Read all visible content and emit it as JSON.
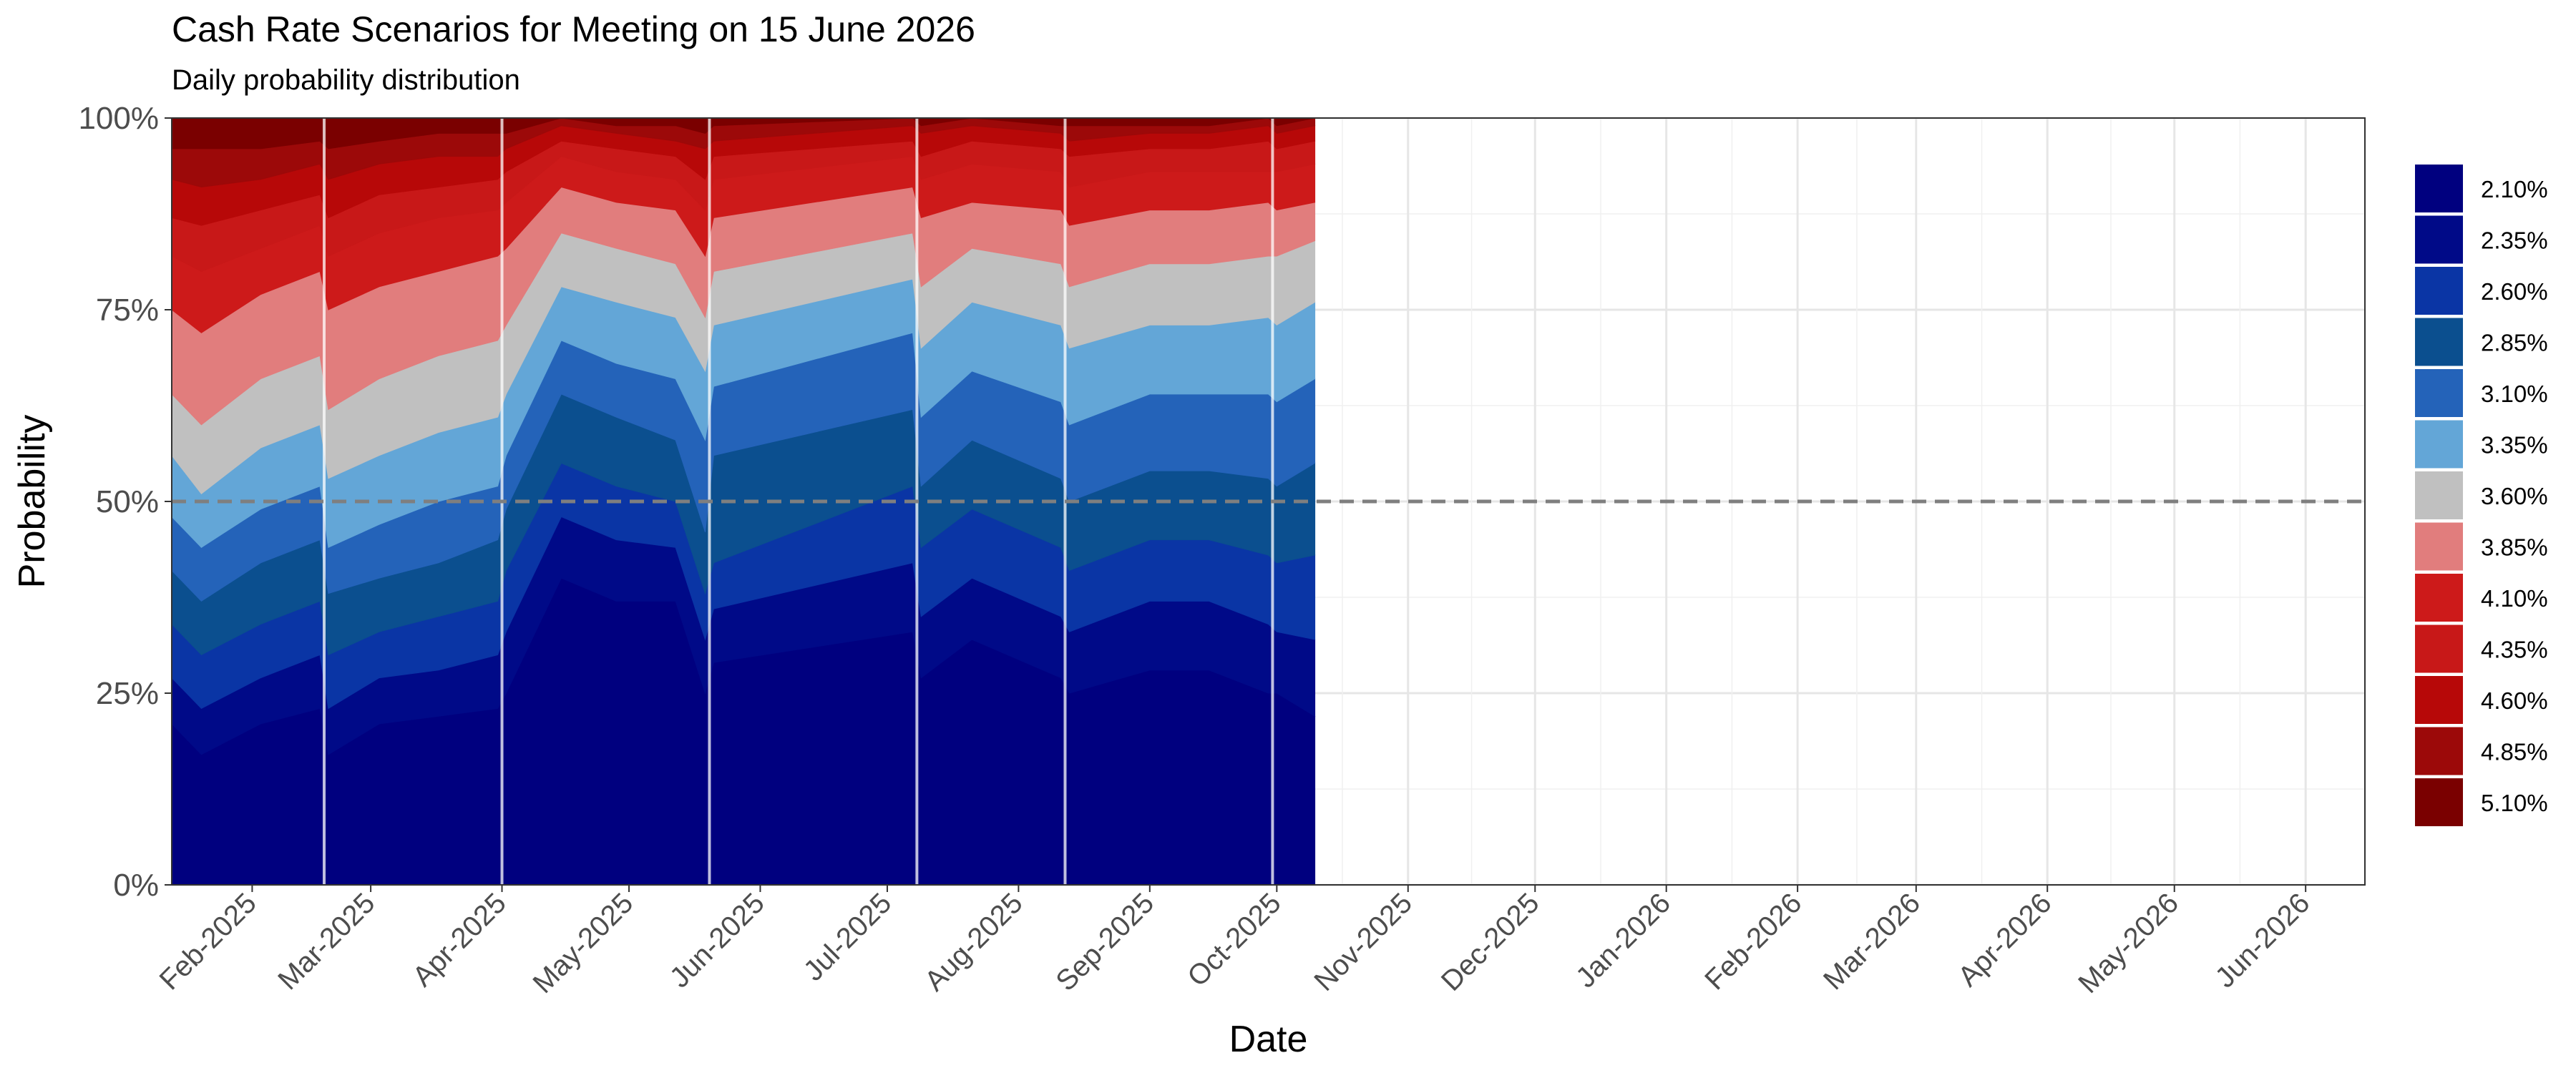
{
  "chart_data": {
    "type": "area",
    "title": "Cash Rate Scenarios for Meeting on 15 June 2026",
    "subtitle": "Daily probability distribution",
    "xlabel": "Date",
    "ylabel": "Probability",
    "y_ticks": [
      "0%",
      "25%",
      "50%",
      "75%",
      "100%"
    ],
    "ylim": [
      0,
      1
    ],
    "x_range": [
      "2025-01-13",
      "2026-06-15"
    ],
    "x_ticks": [
      "Feb-2025",
      "Mar-2025",
      "Apr-2025",
      "May-2025",
      "Jun-2025",
      "Jul-2025",
      "Aug-2025",
      "Sep-2025",
      "Oct-2025",
      "Nov-2025",
      "Dec-2025",
      "Jan-2026",
      "Feb-2026",
      "Mar-2026",
      "Apr-2026",
      "May-2026",
      "Jun-2026"
    ],
    "x_tick_dates": [
      "2025-02-01",
      "2025-03-01",
      "2025-04-01",
      "2025-05-01",
      "2025-06-01",
      "2025-07-01",
      "2025-08-01",
      "2025-09-01",
      "2025-10-01",
      "2025-11-01",
      "2025-12-01",
      "2026-01-01",
      "2026-02-01",
      "2026-03-01",
      "2026-04-01",
      "2026-05-01",
      "2026-06-01"
    ],
    "reference_line": 0.5,
    "meeting_dates": [
      "2025-02-18",
      "2025-04-01",
      "2025-05-20",
      "2025-07-08",
      "2025-08-12",
      "2025-09-30"
    ],
    "legend": [
      {
        "label": "2.10%",
        "color": "#00007f"
      },
      {
        "label": "2.35%",
        "color": "#000a88"
      },
      {
        "label": "2.60%",
        "color": "#0a35a5"
      },
      {
        "label": "2.85%",
        "color": "#0b4f8f"
      },
      {
        "label": "3.10%",
        "color": "#2463b9"
      },
      {
        "label": "3.35%",
        "color": "#63a6d7"
      },
      {
        "label": "3.60%",
        "color": "#c0c0c0"
      },
      {
        "label": "3.85%",
        "color": "#e17d7d"
      },
      {
        "label": "4.10%",
        "color": "#cd1a1a"
      },
      {
        "label": "4.35%",
        "color": "#c81818"
      },
      {
        "label": "4.60%",
        "color": "#b70808"
      },
      {
        "label": "4.85%",
        "color": "#9c0909"
      },
      {
        "label": "5.10%",
        "color": "#7a0000"
      }
    ],
    "x": [
      "2025-01-13",
      "2025-01-20",
      "2025-02-03",
      "2025-02-17",
      "2025-02-19",
      "2025-03-03",
      "2025-03-17",
      "2025-03-31",
      "2025-04-02",
      "2025-04-15",
      "2025-04-28",
      "2025-05-12",
      "2025-05-19",
      "2025-05-21",
      "2025-07-07",
      "2025-07-09",
      "2025-07-21",
      "2025-08-11",
      "2025-08-13",
      "2025-09-01",
      "2025-09-15",
      "2025-09-29",
      "2025-10-01",
      "2025-10-10"
    ],
    "series_boundaries": [
      {
        "name": "2.10% top",
        "values": [
          0.21,
          0.17,
          0.21,
          0.23,
          0.17,
          0.21,
          0.22,
          0.23,
          0.25,
          0.4,
          0.37,
          0.37,
          0.25,
          0.29,
          0.33,
          0.27,
          0.32,
          0.27,
          0.25,
          0.28,
          0.28,
          0.25,
          0.25,
          0.22
        ]
      },
      {
        "name": "2.35% top",
        "values": [
          0.27,
          0.23,
          0.27,
          0.3,
          0.23,
          0.27,
          0.28,
          0.3,
          0.33,
          0.48,
          0.45,
          0.44,
          0.32,
          0.36,
          0.42,
          0.35,
          0.4,
          0.35,
          0.33,
          0.37,
          0.37,
          0.34,
          0.33,
          0.32
        ]
      },
      {
        "name": "2.60% top",
        "values": [
          0.34,
          0.3,
          0.34,
          0.37,
          0.3,
          0.33,
          0.35,
          0.37,
          0.41,
          0.55,
          0.52,
          0.5,
          0.38,
          0.42,
          0.52,
          0.44,
          0.49,
          0.44,
          0.41,
          0.45,
          0.45,
          0.43,
          0.42,
          0.43
        ]
      },
      {
        "name": "2.85% top",
        "values": [
          0.41,
          0.37,
          0.42,
          0.45,
          0.38,
          0.4,
          0.42,
          0.45,
          0.49,
          0.64,
          0.61,
          0.58,
          0.46,
          0.56,
          0.62,
          0.52,
          0.58,
          0.53,
          0.5,
          0.54,
          0.54,
          0.53,
          0.52,
          0.55
        ]
      },
      {
        "name": "3.10% top",
        "values": [
          0.48,
          0.44,
          0.49,
          0.52,
          0.44,
          0.47,
          0.5,
          0.52,
          0.56,
          0.71,
          0.68,
          0.66,
          0.58,
          0.65,
          0.72,
          0.61,
          0.67,
          0.63,
          0.6,
          0.64,
          0.64,
          0.64,
          0.63,
          0.66
        ]
      },
      {
        "name": "3.35% top",
        "values": [
          0.56,
          0.51,
          0.57,
          0.6,
          0.53,
          0.56,
          0.59,
          0.61,
          0.64,
          0.78,
          0.76,
          0.74,
          0.67,
          0.73,
          0.79,
          0.7,
          0.76,
          0.73,
          0.7,
          0.73,
          0.73,
          0.74,
          0.73,
          0.76
        ]
      },
      {
        "name": "3.60% top",
        "values": [
          0.64,
          0.6,
          0.66,
          0.69,
          0.62,
          0.66,
          0.69,
          0.71,
          0.73,
          0.85,
          0.83,
          0.81,
          0.74,
          0.8,
          0.85,
          0.78,
          0.83,
          0.81,
          0.78,
          0.81,
          0.81,
          0.82,
          0.82,
          0.84
        ]
      },
      {
        "name": "3.85% top",
        "values": [
          0.75,
          0.72,
          0.77,
          0.8,
          0.75,
          0.78,
          0.8,
          0.82,
          0.83,
          0.91,
          0.89,
          0.88,
          0.82,
          0.87,
          0.91,
          0.87,
          0.89,
          0.88,
          0.86,
          0.88,
          0.88,
          0.89,
          0.88,
          0.89
        ]
      },
      {
        "name": "4.10% top",
        "values": [
          0.82,
          0.8,
          0.83,
          0.86,
          0.82,
          0.85,
          0.87,
          0.88,
          0.89,
          0.95,
          0.93,
          0.92,
          0.88,
          0.92,
          0.95,
          0.92,
          0.94,
          0.93,
          0.91,
          0.93,
          0.93,
          0.93,
          0.93,
          0.94
        ]
      },
      {
        "name": "4.35% top",
        "values": [
          0.87,
          0.86,
          0.88,
          0.9,
          0.87,
          0.9,
          0.91,
          0.92,
          0.93,
          0.97,
          0.96,
          0.95,
          0.92,
          0.95,
          0.97,
          0.95,
          0.97,
          0.96,
          0.95,
          0.96,
          0.96,
          0.97,
          0.96,
          0.97
        ]
      },
      {
        "name": "4.60% top",
        "values": [
          0.92,
          0.91,
          0.92,
          0.94,
          0.92,
          0.94,
          0.95,
          0.95,
          0.96,
          0.99,
          0.98,
          0.97,
          0.96,
          0.97,
          0.99,
          0.98,
          0.99,
          0.98,
          0.97,
          0.98,
          0.98,
          0.99,
          0.98,
          0.99
        ]
      },
      {
        "name": "4.85% top",
        "values": [
          0.96,
          0.96,
          0.96,
          0.97,
          0.96,
          0.97,
          0.98,
          0.98,
          0.98,
          1.0,
          0.99,
          0.99,
          0.98,
          0.99,
          1.0,
          0.99,
          1.0,
          0.99,
          0.99,
          0.99,
          0.99,
          1.0,
          0.99,
          1.0
        ]
      },
      {
        "name": "5.10% top",
        "values": [
          1,
          1,
          1,
          1,
          1,
          1,
          1,
          1,
          1,
          1,
          1,
          1,
          1,
          1,
          1,
          1,
          1,
          1,
          1,
          1,
          1,
          1,
          1,
          1
        ]
      }
    ]
  }
}
